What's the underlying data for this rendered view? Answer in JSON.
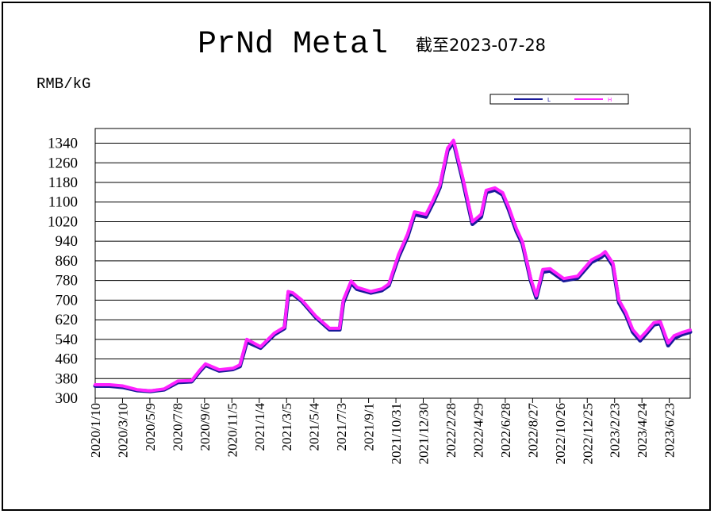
{
  "chart_data": {
    "type": "line",
    "title": "PrNd Metal",
    "subtitle": "截至2023-07-28",
    "ylabel": "RMB/kG",
    "ylim": [
      300,
      1400
    ],
    "yticks": [
      300,
      380,
      460,
      540,
      620,
      700,
      780,
      860,
      940,
      1020,
      1100,
      1180,
      1260,
      1340
    ],
    "grid": true,
    "legend_position": "top-right",
    "xlim": [
      "2020-01-10",
      "2023-07-28"
    ],
    "x_tick_labels": [
      "2020/1/10",
      "2020/3/10",
      "2020/5/9",
      "2020/7/8",
      "2020/9/6",
      "2020/11/5",
      "2021/1/4",
      "2021/3/5",
      "2021/5/4",
      "2021/7/3",
      "2021/9/1",
      "2021/10/31",
      "2021/12/30",
      "2022/2/28",
      "2022/4/29",
      "2022/6/28",
      "2022/8/27",
      "2022/10/26",
      "2022/12/25",
      "2023/2/23",
      "2023/4/24",
      "2023/6/23"
    ],
    "x": [
      "2020-01-10",
      "2020-02-10",
      "2020-03-10",
      "2020-04-10",
      "2020-05-09",
      "2020-06-08",
      "2020-07-08",
      "2020-08-07",
      "2020-08-25",
      "2020-09-06",
      "2020-10-06",
      "2020-11-05",
      "2020-11-20",
      "2020-12-05",
      "2021-01-04",
      "2021-02-03",
      "2021-02-25",
      "2021-03-05",
      "2021-03-15",
      "2021-04-04",
      "2021-05-04",
      "2021-06-03",
      "2021-06-25",
      "2021-07-03",
      "2021-07-20",
      "2021-08-02",
      "2021-09-01",
      "2021-09-25",
      "2021-10-10",
      "2021-10-31",
      "2021-11-20",
      "2021-12-05",
      "2021-12-30",
      "2022-01-15",
      "2022-01-29",
      "2022-02-15",
      "2022-02-28",
      "2022-03-20",
      "2022-04-10",
      "2022-04-29",
      "2022-05-10",
      "2022-05-29",
      "2022-06-15",
      "2022-06-28",
      "2022-07-15",
      "2022-07-28",
      "2022-08-15",
      "2022-08-27",
      "2022-09-10",
      "2022-09-26",
      "2022-10-26",
      "2022-11-25",
      "2022-12-25",
      "2023-01-15",
      "2023-01-24",
      "2023-02-10",
      "2023-02-23",
      "2023-03-10",
      "2023-03-25",
      "2023-04-10",
      "2023-04-24",
      "2023-05-10",
      "2023-05-24",
      "2023-06-10",
      "2023-06-23",
      "2023-07-10",
      "2023-07-28"
    ],
    "series": [
      {
        "name": "L",
        "color": "#1a1a9a",
        "values": [
          350,
          350,
          345,
          332,
          328,
          335,
          365,
          368,
          410,
          435,
          412,
          418,
          430,
          530,
          505,
          560,
          585,
          720,
          725,
          695,
          630,
          580,
          580,
          690,
          770,
          745,
          730,
          740,
          760,
          875,
          960,
          1050,
          1040,
          1100,
          1160,
          1310,
          1345,
          1190,
          1010,
          1040,
          1140,
          1150,
          1130,
          1070,
          980,
          930,
          780,
          710,
          815,
          820,
          780,
          790,
          855,
          875,
          890,
          840,
          690,
          640,
          570,
          535,
          565,
          600,
          605,
          515,
          545,
          560,
          570
        ]
      },
      {
        "name": "H",
        "color": "#ff22ff",
        "values": [
          355,
          355,
          350,
          335,
          330,
          338,
          370,
          372,
          415,
          440,
          416,
          422,
          436,
          540,
          510,
          566,
          590,
          735,
          730,
          700,
          635,
          585,
          585,
          700,
          778,
          752,
          735,
          746,
          766,
          885,
          970,
          1060,
          1050,
          1110,
          1168,
          1320,
          1352,
          1200,
          1020,
          1050,
          1148,
          1158,
          1138,
          1080,
          990,
          938,
          788,
          718,
          825,
          828,
          788,
          798,
          864,
          884,
          898,
          850,
          700,
          650,
          580,
          545,
          573,
          608,
          612,
          525,
          555,
          568,
          578
        ]
      }
    ]
  }
}
